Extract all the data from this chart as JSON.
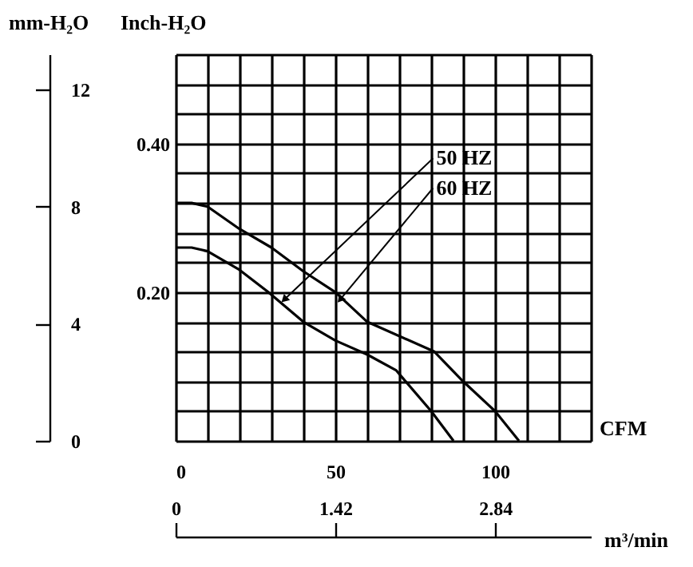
{
  "chart_data": {
    "type": "line",
    "ylabel": "Inch-H₂O",
    "y2label": "mm-H₂O",
    "xlabel": "CFM",
    "x2label": "m³/min",
    "xlim": [
      0,
      130
    ],
    "xticks": [
      0,
      {
        "value": 10,
        "label": null
      },
      {
        "value": 20,
        "label": null
      },
      {
        "value": 30,
        "label": null
      },
      {
        "value": 40,
        "label": null
      },
      50,
      {
        "value": 60,
        "label": null
      },
      {
        "value": 70,
        "label": null
      },
      {
        "value": 80,
        "label": null
      },
      {
        "value": 90,
        "label": null
      },
      100,
      {
        "value": 110,
        "label": null
      },
      {
        "value": 120,
        "label": null
      },
      {
        "value": 130,
        "label": null
      }
    ],
    "ylim": [
      0,
      0.52
    ],
    "yticks": [
      {
        "value": 0,
        "label": null
      },
      {
        "value": 0.04,
        "label": null
      },
      {
        "value": 0.08,
        "label": null
      },
      {
        "value": 0.12,
        "label": null
      },
      {
        "value": 0.16,
        "label": null
      },
      {
        "value": 0.2,
        "label": "0.20"
      },
      {
        "value": 0.24,
        "label": null
      },
      {
        "value": 0.28,
        "label": null
      },
      {
        "value": 0.32,
        "label": null
      },
      {
        "value": 0.36,
        "label": null
      },
      {
        "value": 0.4,
        "label": "0.40"
      },
      {
        "value": 0.44,
        "label": null
      },
      {
        "value": 0.48,
        "label": null
      },
      {
        "value": 0.52,
        "label": null
      }
    ],
    "y2lim": [
      0,
      13.2
    ],
    "y2ticks": [
      0,
      4,
      8,
      12
    ],
    "x2lim": [
      0,
      3.69
    ],
    "x2ticks": [
      0,
      1.42,
      2.84
    ],
    "grid": true,
    "series": [
      {
        "color": "#000000",
        "x": [
          0,
          5,
          10,
          20,
          29,
          40,
          50,
          60,
          69,
          71,
          80,
          87
        ],
        "values": [
          0.26,
          0.26,
          0.255,
          0.23,
          0.2,
          0.16,
          0.135,
          0.116,
          0.095,
          0.085,
          0.04,
          0
        ]
      },
      {
        "color": "#000000",
        "x": [
          0,
          5,
          10,
          20,
          30,
          40,
          50,
          60,
          81,
          90,
          100,
          107.5
        ],
        "values": [
          0.32,
          0.32,
          0.315,
          0.285,
          0.26,
          0.228,
          0.2,
          0.16,
          0.12,
          0.08,
          0.04,
          0
        ]
      }
    ],
    "annotations": [
      {
        "text": "50 HZ",
        "x": 34,
        "y": 0.19
      },
      {
        "text": "60 HZ",
        "x": 51.5,
        "y": 0.19
      }
    ]
  }
}
